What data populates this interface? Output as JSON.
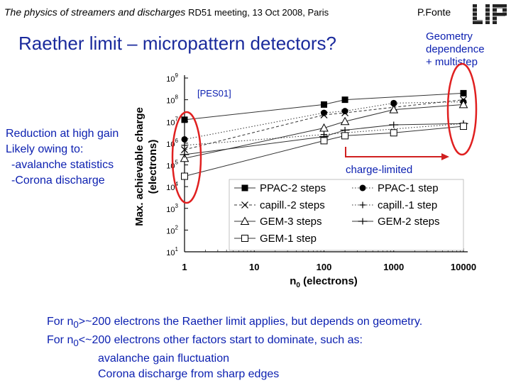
{
  "header": {
    "conference": "The physics of streamers and discharges",
    "meeting": "RD51 meeting, 13 Oct 2008, Paris",
    "author": "P.Fonte",
    "logo_text": "LIP"
  },
  "title": "Raether limit – micropattern detectors?",
  "annotations": {
    "geometry": [
      "Geometry",
      "dependence",
      "+ multistep"
    ],
    "reduction": [
      "Reduction at high gain",
      "Likely owing to:",
      "-avalanche statistics",
      "-Corona discharge"
    ],
    "charge_limited": "charge-limited",
    "pes": "[PES01]"
  },
  "bottom_text": {
    "line1_pre": "For n",
    "line1_sub": "0",
    "line1_post": ">~200 electrons the Raether limit applies, but depends on geometry.",
    "line2_pre": "For n",
    "line2_sub": "0",
    "line2_post": "<~200 electrons other factors start to dominate, such as:",
    "item1": "avalanche gain fluctuation",
    "item2": "Corona discharge from sharp edges"
  },
  "colors": {
    "blue_text": "#0b1fb0",
    "title_blue": "#1a2a9c",
    "highlight": "#e02020",
    "arrow": "#d02020"
  },
  "chart_data": {
    "type": "scatter",
    "x_scale": "log",
    "y_scale": "log",
    "xlabel": "n0 (electrons)",
    "ylabel": "Max. achievable charge (electrons)",
    "xlim": [
      1,
      10000
    ],
    "ylim": [
      10,
      1000000000
    ],
    "x_ticks": [
      "1",
      "10",
      "100",
      "1000",
      "10000"
    ],
    "y_ticks": [
      "10^1",
      "10^2",
      "10^3",
      "10^4",
      "10^5",
      "10^6",
      "10^7",
      "10^8",
      "10^9"
    ],
    "grid": false,
    "legend_position": "bottom-right",
    "series": [
      {
        "name": "PPAC-2 steps",
        "marker": "filled-square",
        "dash": "solid",
        "x": [
          1,
          100,
          200,
          10000
        ],
        "y": [
          12000000,
          60000000,
          100000000,
          200000000
        ]
      },
      {
        "name": "PPAC-1 step",
        "marker": "filled-circle",
        "dash": "dotted",
        "x": [
          1,
          100,
          200,
          1000,
          10000
        ],
        "y": [
          1500000,
          25000000,
          30000000,
          70000000,
          80000000
        ]
      },
      {
        "name": "capill.-2 steps",
        "marker": "x",
        "dash": "dashed",
        "x": [
          1,
          100,
          200,
          1000,
          10000
        ],
        "y": [
          500000,
          20000000,
          25000000,
          45000000,
          100000000
        ]
      },
      {
        "name": "capill.-1 step",
        "marker": "plus",
        "dash": "dotted",
        "x": [
          1,
          100,
          200,
          10000
        ],
        "y": [
          800000,
          2500000,
          3000000,
          8000000
        ]
      },
      {
        "name": "GEM-3 steps",
        "marker": "open-triangle",
        "dash": "solid",
        "x": [
          1,
          100,
          200,
          1000,
          10000
        ],
        "y": [
          200000,
          5000000,
          10000000,
          35000000,
          60000000
        ]
      },
      {
        "name": "GEM-2 steps",
        "marker": "dash-plus",
        "dash": "solid",
        "x": [
          1,
          100,
          200,
          1000,
          10000
        ],
        "y": [
          300000,
          2000000,
          4000000,
          7000000,
          8000000
        ]
      },
      {
        "name": "GEM-1 step",
        "marker": "open-square",
        "dash": "solid",
        "x": [
          1,
          100,
          200,
          1000,
          10000
        ],
        "y": [
          30000,
          1300000,
          2200000,
          3000000,
          6000000
        ]
      }
    ]
  }
}
